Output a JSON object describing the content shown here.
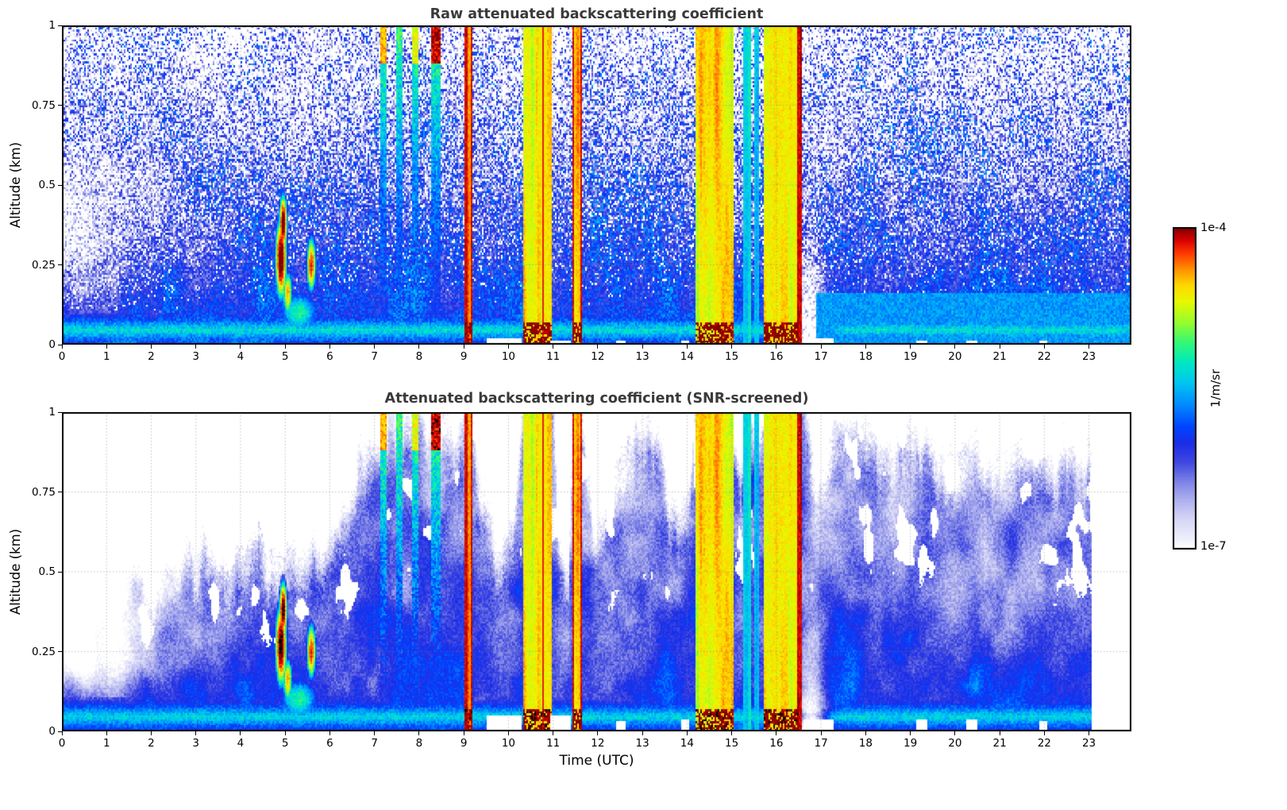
{
  "panels": [
    {
      "id": "raw",
      "title": "Raw attenuated backscattering coefficient"
    },
    {
      "id": "screened",
      "title": "Attenuated backscattering coefficient (SNR-screened)"
    }
  ],
  "axes": {
    "x": {
      "label": "Time (UTC)",
      "min": 0,
      "max": 23.95,
      "ticks": [
        0,
        1,
        2,
        3,
        4,
        5,
        6,
        7,
        8,
        9,
        10,
        11,
        12,
        13,
        14,
        15,
        16,
        17,
        18,
        19,
        20,
        21,
        22,
        23
      ]
    },
    "y": {
      "label": "Altitude (km)",
      "min": 0,
      "max": 1,
      "ticks": [
        "0",
        "0.25",
        "0.5",
        "0.75",
        "1"
      ],
      "tick_values": [
        0,
        0.25,
        0.5,
        0.75,
        1
      ]
    }
  },
  "colorbar": {
    "top_label": "1e-4",
    "bottom_label": "1e-7",
    "unit_label": "1/m/sr",
    "vmin_log": -7,
    "vmax_log": -4,
    "stops": [
      [
        0.0,
        "#ffffff"
      ],
      [
        0.03,
        "#f0f0fb"
      ],
      [
        0.09,
        "#d8d8f6"
      ],
      [
        0.15,
        "#b0b2ee"
      ],
      [
        0.21,
        "#7d82e6"
      ],
      [
        0.27,
        "#3f48e0"
      ],
      [
        0.33,
        "#1b2de8"
      ],
      [
        0.38,
        "#0044ff"
      ],
      [
        0.45,
        "#008cff"
      ],
      [
        0.52,
        "#00c8f0"
      ],
      [
        0.58,
        "#00e8c0"
      ],
      [
        0.64,
        "#30f878"
      ],
      [
        0.7,
        "#90fc30"
      ],
      [
        0.77,
        "#e8f800"
      ],
      [
        0.82,
        "#ffd800"
      ],
      [
        0.87,
        "#ff9000"
      ],
      [
        0.92,
        "#ff3800"
      ],
      [
        0.96,
        "#d80000"
      ],
      [
        1.0,
        "#7f0000"
      ]
    ]
  },
  "chart_data": {
    "type": "heatmap",
    "value_quantity": "attenuated backscattering coefficient (1/m/sr), log10 color scale",
    "x_range_hours": [
      0,
      23.95
    ],
    "y_range_km": [
      0,
      1
    ],
    "colorbar_range_log10": [
      -7,
      -4
    ],
    "screened_end_hour": 23.05,
    "black_threshold": -3.93,
    "surface_band": {
      "height_km": 0.045,
      "log_value": -5.3
    },
    "left_clear_until_hour": 3.5,
    "post_event_clearing": {
      "t": 16.78,
      "sigma": 0.33,
      "max_height": 0.5
    },
    "events": [
      {
        "t0": 9.03,
        "t1": 9.21,
        "logv": -4.45,
        "red_edges": true,
        "bottom_red": true
      },
      {
        "t0": 10.33,
        "t1": 10.97,
        "logv": -4.6,
        "red_edges": false,
        "bottom_red": true
      },
      {
        "t0": 11.44,
        "t1": 11.67,
        "logv": -4.55,
        "red_edges": true,
        "bottom_red": true
      },
      {
        "t0": 14.2,
        "t1": 15.05,
        "logv": -4.6,
        "red_edges": false,
        "bottom_red": true
      },
      {
        "t0": 15.27,
        "t1": 15.43,
        "logv": -5.3,
        "red_edges": false,
        "bottom_red": false
      },
      {
        "t0": 15.5,
        "t1": 15.62,
        "logv": -5.35,
        "red_edges": false,
        "bottom_red": false
      },
      {
        "t0": 15.7,
        "t1": 16.48,
        "logv": -4.6,
        "red_edges": false,
        "bottom_red": true
      },
      {
        "t0": 16.48,
        "t1": 16.56,
        "logv": -4.15,
        "red_edges": true,
        "bottom_red": false
      }
    ],
    "streaks": [
      {
        "t0": 7.12,
        "t1": 7.27,
        "top_logv": -4.45
      },
      {
        "t0": 7.5,
        "t1": 7.62,
        "top_logv": null
      },
      {
        "t0": 7.84,
        "t1": 7.97,
        "top_logv": -4.7
      },
      {
        "t0": 8.28,
        "t1": 8.5,
        "top_logv": -4.1
      }
    ],
    "clouds": [
      {
        "t": 4.9,
        "h": 0.27,
        "st": 0.07,
        "sh": 0.07,
        "logv": -3.8
      },
      {
        "t": 4.95,
        "h": 0.38,
        "st": 0.05,
        "sh": 0.05,
        "logv": -3.85
      },
      {
        "t": 5.05,
        "h": 0.16,
        "st": 0.06,
        "sh": 0.04,
        "logv": -4.4
      },
      {
        "t": 5.58,
        "h": 0.25,
        "st": 0.06,
        "sh": 0.05,
        "logv": -4.2
      },
      {
        "t": 5.3,
        "h": 0.1,
        "st": 0.3,
        "sh": 0.045,
        "logv": -5.15
      }
    ],
    "bl_top_points": [
      [
        0,
        0.6
      ],
      [
        0.8,
        0.52
      ],
      [
        1.5,
        0.62
      ],
      [
        2.2,
        0.55
      ],
      [
        3,
        0.58
      ],
      [
        3.8,
        0.55
      ],
      [
        4.3,
        0.62
      ],
      [
        4.9,
        0.55
      ],
      [
        5.3,
        0.6
      ],
      [
        5.9,
        0.62
      ],
      [
        6.4,
        0.72
      ],
      [
        6.9,
        0.95
      ],
      [
        7.3,
        1.03
      ],
      [
        8.3,
        1.03
      ],
      [
        8.8,
        0.95
      ],
      [
        9.05,
        1.03
      ],
      [
        9.35,
        0.85
      ],
      [
        9.7,
        0.62
      ],
      [
        10.1,
        0.72
      ],
      [
        10.3,
        1.03
      ],
      [
        11.0,
        1.03
      ],
      [
        11.15,
        0.62
      ],
      [
        11.35,
        0.55
      ],
      [
        11.43,
        1.03
      ],
      [
        11.7,
        1.03
      ],
      [
        11.95,
        0.7
      ],
      [
        12.3,
        0.8
      ],
      [
        12.7,
        1.0
      ],
      [
        13.1,
        1.03
      ],
      [
        13.5,
        0.85
      ],
      [
        13.8,
        0.68
      ],
      [
        14.05,
        0.75
      ],
      [
        14.18,
        1.03
      ],
      [
        15.1,
        1.03
      ],
      [
        15.2,
        0.9
      ],
      [
        15.28,
        1.03
      ],
      [
        16.6,
        1.03
      ],
      [
        16.9,
        0.75
      ],
      [
        17.3,
        0.95
      ],
      [
        17.8,
        1.0
      ],
      [
        18.5,
        0.92
      ],
      [
        19.2,
        1.0
      ],
      [
        19.8,
        0.88
      ],
      [
        20.4,
        0.95
      ],
      [
        21.0,
        0.9
      ],
      [
        21.6,
        0.95
      ],
      [
        22.2,
        0.85
      ],
      [
        22.7,
        0.9
      ],
      [
        23.05,
        0.82
      ]
    ],
    "bottom_gaps": [
      {
        "t0": 9.5,
        "t1": 10.3,
        "h_raw": 0.02,
        "h_scr": 0.05
      },
      {
        "t0": 10.95,
        "t1": 11.42,
        "h_raw": 0.015,
        "h_scr": 0.05
      },
      {
        "t0": 12.4,
        "t1": 12.6,
        "h_raw": 0.012,
        "h_scr": 0.03
      },
      {
        "t0": 13.85,
        "t1": 14.05,
        "h_raw": 0.015,
        "h_scr": 0.04
      },
      {
        "t0": 16.6,
        "t1": 17.3,
        "h_raw": 0.02,
        "h_scr": 0.04
      },
      {
        "t0": 19.15,
        "t1": 19.4,
        "h_raw": 0.012,
        "h_scr": 0.035
      },
      {
        "t0": 20.25,
        "t1": 20.5,
        "h_raw": 0.012,
        "h_scr": 0.035
      },
      {
        "t0": 21.9,
        "t1": 22.05,
        "h_raw": 0.01,
        "h_scr": 0.03
      }
    ]
  }
}
